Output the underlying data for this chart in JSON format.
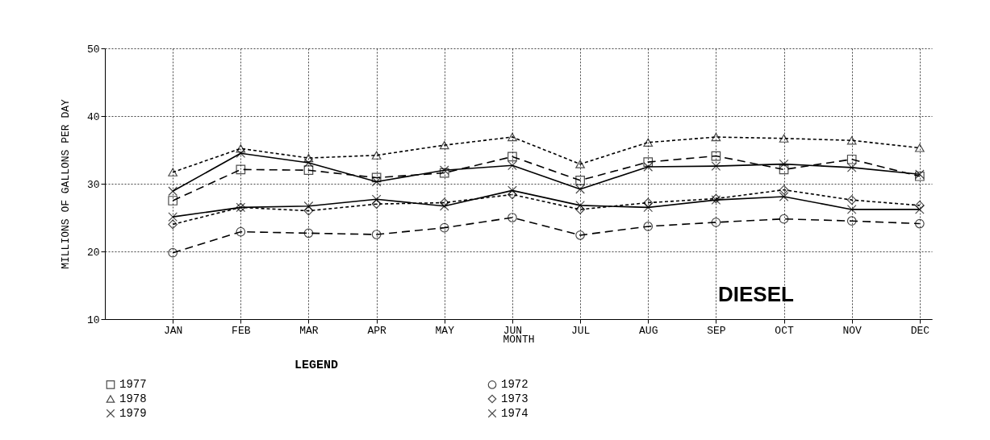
{
  "chart_data": {
    "type": "line",
    "categories": [
      "JAN",
      "FEB",
      "MAR",
      "APR",
      "MAY",
      "JUN",
      "JUL",
      "AUG",
      "SEP",
      "OCT",
      "NOV",
      "DEC"
    ],
    "xlabel": "MONTH",
    "ylabel": "MILLIONS OF GALLONS PER DAY",
    "legend_title": "LEGEND",
    "ylim": [
      10,
      50
    ],
    "yticks": [
      10,
      20,
      30,
      40,
      50
    ],
    "grid": true,
    "legend": "bottom",
    "annotations": [
      "DIESEL"
    ],
    "series": [
      {
        "name": "1977",
        "color": "#000000",
        "line_style": "dashed",
        "marker": "square",
        "values": [
          27.5,
          32.1,
          32.0,
          30.9,
          31.6,
          34.0,
          30.5,
          33.2,
          34.1,
          32.1,
          33.6,
          31.1
        ]
      },
      {
        "name": "1978",
        "color": "#000000",
        "line_style": "dotted",
        "marker": "triangle",
        "values": [
          31.7,
          35.2,
          33.8,
          34.2,
          35.7,
          36.9,
          32.9,
          36.1,
          36.9,
          36.7,
          36.4,
          35.3
        ]
      },
      {
        "name": "1979",
        "color": "#000000",
        "line_style": "solid",
        "marker": "cross",
        "values": [
          28.9,
          34.5,
          33.1,
          30.3,
          32.0,
          32.7,
          29.2,
          32.5,
          32.6,
          32.9,
          32.4,
          31.4
        ]
      },
      {
        "name": "1972",
        "color": "#000000",
        "line_style": "dashed",
        "marker": "circle",
        "values": [
          19.8,
          22.9,
          22.7,
          22.5,
          23.5,
          25.0,
          22.4,
          23.7,
          24.3,
          24.8,
          24.5,
          24.1
        ]
      },
      {
        "name": "1973",
        "color": "#000000",
        "line_style": "dotted",
        "marker": "diamond",
        "values": [
          24.0,
          26.5,
          26.0,
          27.0,
          27.2,
          28.4,
          26.2,
          27.2,
          27.8,
          29.1,
          27.6,
          26.8
        ]
      },
      {
        "name": "1974",
        "color": "#000000",
        "line_style": "solid",
        "marker": "cross",
        "values": [
          25.1,
          26.5,
          26.7,
          27.7,
          26.7,
          29.0,
          26.8,
          26.5,
          27.6,
          28.1,
          26.2,
          26.2
        ]
      }
    ]
  }
}
